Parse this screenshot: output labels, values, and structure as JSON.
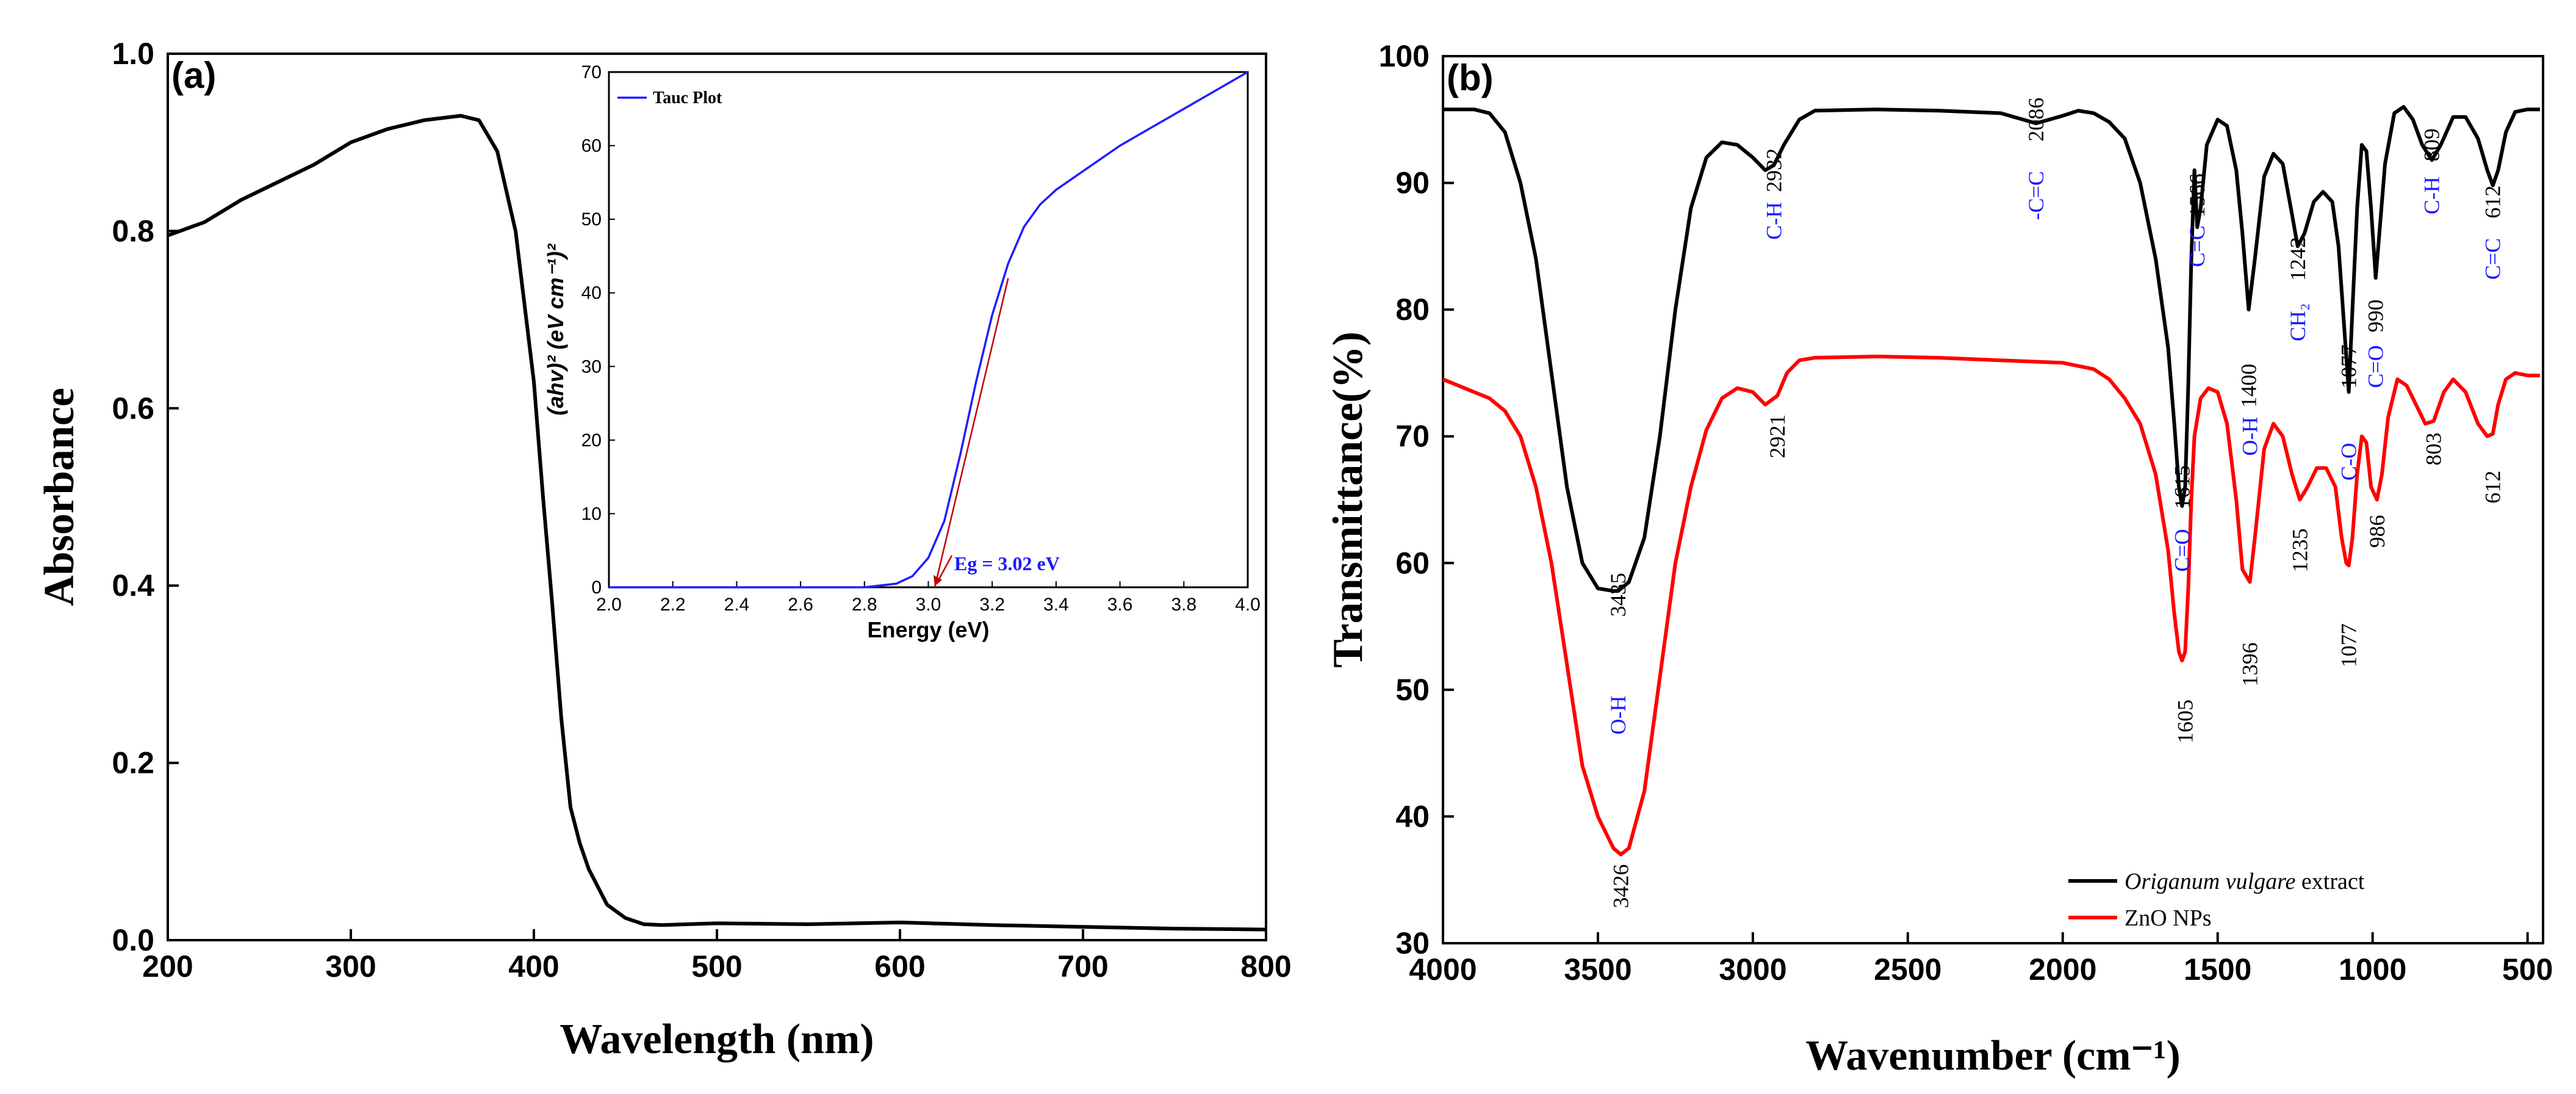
{
  "colors": {
    "black_series": "#000000",
    "red_series": "#ff0000",
    "tauc_line": "#1f1fff",
    "fit_line": "#c00000",
    "annotation_blue": "#1a1aff"
  },
  "chart_data": [
    {
      "panel": "(a)",
      "type": "line",
      "title": "",
      "xlabel": "Wavelength (nm)",
      "ylabel": "Absorbance",
      "xlim": [
        200,
        800
      ],
      "ylim": [
        0.0,
        1.0
      ],
      "xticks": [
        "200",
        "300",
        "400",
        "500",
        "600",
        "700",
        "800"
      ],
      "yticks": [
        "0.0",
        "0.2",
        "0.4",
        "0.6",
        "0.8",
        "1.0"
      ],
      "series": [
        {
          "name": "Absorbance",
          "x": [
            200,
            220,
            240,
            260,
            280,
            300,
            320,
            340,
            360,
            370,
            380,
            390,
            400,
            405,
            410,
            415,
            420,
            425,
            430,
            440,
            450,
            460,
            470,
            500,
            550,
            600,
            650,
            700,
            750,
            800
          ],
          "y": [
            0.795,
            0.81,
            0.835,
            0.855,
            0.875,
            0.9,
            0.915,
            0.925,
            0.93,
            0.925,
            0.89,
            0.8,
            0.63,
            0.5,
            0.38,
            0.25,
            0.15,
            0.11,
            0.08,
            0.04,
            0.025,
            0.018,
            0.017,
            0.019,
            0.018,
            0.02,
            0.017,
            0.015,
            0.013,
            0.012
          ]
        }
      ],
      "inset": {
        "type": "line",
        "xlabel": "Energy (eV)",
        "ylabel": "(ahv)² (eV cm⁻¹)²",
        "xlim": [
          2.0,
          4.0
        ],
        "ylim": [
          0,
          70
        ],
        "xticks": [
          "2.0",
          "2.2",
          "2.4",
          "2.6",
          "2.8",
          "3.0",
          "3.2",
          "3.4",
          "3.6",
          "3.8",
          "4.0"
        ],
        "yticks": [
          "0",
          "10",
          "20",
          "30",
          "40",
          "50",
          "60",
          "70"
        ],
        "legend": "Tauc Plot",
        "annotation": "Eg = 3.02 eV",
        "series": [
          {
            "name": "Tauc Plot",
            "x": [
              2.0,
              2.8,
              2.9,
              2.95,
              3.0,
              3.05,
              3.1,
              3.15,
              3.2,
              3.25,
              3.3,
              3.35,
              3.4,
              3.5,
              3.6,
              3.7,
              3.8,
              3.9,
              4.0
            ],
            "y": [
              0,
              0,
              0.5,
              1.5,
              4,
              9,
              18,
              28,
              37,
              44,
              49,
              52,
              54,
              57,
              60,
              62.5,
              65,
              67.5,
              70
            ]
          },
          {
            "name": "Linear fit",
            "x": [
              3.02,
              3.25
            ],
            "y": [
              0,
              42
            ]
          }
        ]
      }
    },
    {
      "panel": "(b)",
      "type": "line",
      "title": "",
      "xlabel": "Wavenumber (cm⁻¹)",
      "ylabel": "Transmittance(%)",
      "xlim": [
        4000,
        450
      ],
      "ylim": [
        30,
        100
      ],
      "xticks": [
        "4000",
        "3500",
        "3000",
        "2500",
        "2000",
        "1500",
        "1000",
        "500"
      ],
      "yticks": [
        "30",
        "40",
        "50",
        "60",
        "70",
        "80",
        "90",
        "100"
      ],
      "legend": [
        "Origanum vulgare extract",
        "ZnO NPs"
      ],
      "legend_italic": "Origanum vulgare",
      "legend_suffix": " extract",
      "series": [
        {
          "name": "Origanum vulgare extract",
          "x": [
            4000,
            3900,
            3850,
            3800,
            3750,
            3700,
            3650,
            3600,
            3550,
            3500,
            3450,
            3435,
            3400,
            3350,
            3300,
            3250,
            3200,
            3150,
            3100,
            3050,
            3000,
            2960,
            2932,
            2900,
            2850,
            2800,
            2600,
            2400,
            2200,
            2086,
            2000,
            1950,
            1900,
            1850,
            1800,
            1750,
            1700,
            1660,
            1640,
            1625,
            1615,
            1605,
            1595,
            1585,
            1575,
            1566,
            1555,
            1535,
            1500,
            1470,
            1440,
            1420,
            1400,
            1380,
            1350,
            1320,
            1290,
            1260,
            1242,
            1220,
            1190,
            1160,
            1130,
            1110,
            1090,
            1077,
            1065,
            1050,
            1035,
            1020,
            1005,
            990,
            975,
            960,
            930,
            900,
            870,
            840,
            809,
            780,
            740,
            700,
            660,
            630,
            612,
            595,
            570,
            540,
            500,
            460
          ],
          "y": [
            95.8,
            95.8,
            95.5,
            94,
            90,
            84,
            75,
            66,
            60,
            58,
            57.8,
            57.8,
            58.5,
            62,
            70,
            80,
            88,
            92,
            93.2,
            93,
            92,
            91,
            91.4,
            93,
            95,
            95.7,
            95.8,
            95.7,
            95.5,
            94.7,
            95.3,
            95.7,
            95.5,
            94.8,
            93.5,
            90,
            84,
            77,
            71,
            66,
            64.5,
            66,
            74,
            84,
            91,
            86.5,
            88,
            93,
            95,
            94.5,
            91,
            86,
            80,
            84,
            90.5,
            92.3,
            91.5,
            87.5,
            85,
            86,
            88.5,
            89.3,
            88.5,
            85,
            78,
            73.5,
            80,
            88,
            93,
            92.5,
            88,
            82.5,
            87,
            91.5,
            95.5,
            96,
            95,
            93,
            91.8,
            93,
            95.2,
            95.2,
            93.5,
            91,
            89.8,
            91,
            94,
            95.6,
            95.8,
            95.8
          ]
        },
        {
          "name": "ZnO NPs",
          "x": [
            4000,
            3900,
            3850,
            3800,
            3750,
            3700,
            3650,
            3600,
            3550,
            3500,
            3450,
            3426,
            3400,
            3350,
            3300,
            3250,
            3200,
            3150,
            3100,
            3050,
            3000,
            2960,
            2921,
            2890,
            2850,
            2800,
            2600,
            2400,
            2200,
            2000,
            1900,
            1850,
            1800,
            1750,
            1700,
            1660,
            1640,
            1625,
            1615,
            1605,
            1595,
            1585,
            1575,
            1555,
            1530,
            1500,
            1470,
            1440,
            1420,
            1396,
            1380,
            1350,
            1320,
            1290,
            1260,
            1235,
            1210,
            1180,
            1150,
            1120,
            1100,
            1085,
            1077,
            1065,
            1050,
            1035,
            1020,
            1005,
            986,
            970,
            950,
            920,
            890,
            860,
            830,
            803,
            770,
            740,
            700,
            660,
            630,
            612,
            595,
            570,
            540,
            500,
            460
          ],
          "y": [
            74.5,
            73.5,
            73,
            72,
            70,
            66,
            60,
            52,
            44,
            40,
            37.5,
            37,
            37.5,
            42,
            51,
            60,
            66,
            70.5,
            73,
            73.8,
            73.5,
            72.5,
            73.2,
            75,
            76,
            76.2,
            76.3,
            76.2,
            76,
            75.8,
            75.3,
            74.5,
            73,
            71,
            67,
            61,
            56,
            53,
            52.3,
            53,
            58,
            65,
            70,
            73,
            73.8,
            73.5,
            71,
            65,
            59.5,
            58.5,
            62,
            69,
            71,
            70,
            67,
            65,
            66,
            67.5,
            67.5,
            66,
            62,
            60,
            59.8,
            62,
            67,
            70,
            69.5,
            66,
            65,
            67,
            71.5,
            74.5,
            74,
            72.5,
            71,
            71.2,
            73.5,
            74.5,
            73.5,
            71,
            70,
            70.2,
            72.5,
            74.5,
            75,
            74.8,
            74.8
          ]
        }
      ],
      "annotations": [
        {
          "text": "O-H",
          "x": 3435,
          "y": 48,
          "color": "blue"
        },
        {
          "text": "3435",
          "x": 3435,
          "y": 57.5,
          "color": "black"
        },
        {
          "text": "3426",
          "x": 3426,
          "y": 34.5,
          "color": "black"
        },
        {
          "text": "C-H",
          "x": 2932,
          "y": 87,
          "color": "blue"
        },
        {
          "text": "2932",
          "x": 2932,
          "y": 91,
          "color": "black"
        },
        {
          "text": "2921",
          "x": 2921,
          "y": 70,
          "color": "black"
        },
        {
          "text": "-C=C",
          "x": 2086,
          "y": 89,
          "color": "blue"
        },
        {
          "text": "2086",
          "x": 2086,
          "y": 95,
          "color": "black"
        },
        {
          "text": "C=C",
          "x": 1566,
          "y": 85,
          "color": "blue"
        },
        {
          "text": "1566",
          "x": 1566,
          "y": 89,
          "color": "black"
        },
        {
          "text": "C=O",
          "x": 1615,
          "y": 61,
          "color": "blue"
        },
        {
          "text": "1615",
          "x": 1615,
          "y": 66,
          "color": "black"
        },
        {
          "text": "1605",
          "x": 1605,
          "y": 47.5,
          "color": "black"
        },
        {
          "text": "1400",
          "x": 1400,
          "y": 74,
          "color": "black"
        },
        {
          "text": "O-H",
          "x": 1396,
          "y": 70,
          "color": "blue"
        },
        {
          "text": "1396",
          "x": 1396,
          "y": 52,
          "color": "black"
        },
        {
          "text": "CH₂",
          "x": 1242,
          "y": 79,
          "color": "blue"
        },
        {
          "text": "1242",
          "x": 1242,
          "y": 84,
          "color": "black"
        },
        {
          "text": "1235",
          "x": 1235,
          "y": 61,
          "color": "black"
        },
        {
          "text": "C-O",
          "x": 1077,
          "y": 68,
          "color": "blue"
        },
        {
          "text": "1077",
          "x": 1077,
          "y": 75.5,
          "color": "black"
        },
        {
          "text": "1077",
          "x": 1077,
          "y": 53.5,
          "color": "black"
        },
        {
          "text": "C=O",
          "x": 990,
          "y": 75.5,
          "color": "blue"
        },
        {
          "text": "990",
          "x": 990,
          "y": 79.5,
          "color": "black"
        },
        {
          "text": "986",
          "x": 986,
          "y": 62.5,
          "color": "black"
        },
        {
          "text": "C-H",
          "x": 809,
          "y": 89,
          "color": "blue"
        },
        {
          "text": "809",
          "x": 809,
          "y": 93,
          "color": "black"
        },
        {
          "text": "803",
          "x": 803,
          "y": 69,
          "color": "black"
        },
        {
          "text": "C=C",
          "x": 612,
          "y": 84,
          "color": "blue"
        },
        {
          "text": "612",
          "x": 612,
          "y": 88.5,
          "color": "black"
        },
        {
          "text": "612",
          "x": 612,
          "y": 66,
          "color": "black"
        }
      ]
    }
  ]
}
